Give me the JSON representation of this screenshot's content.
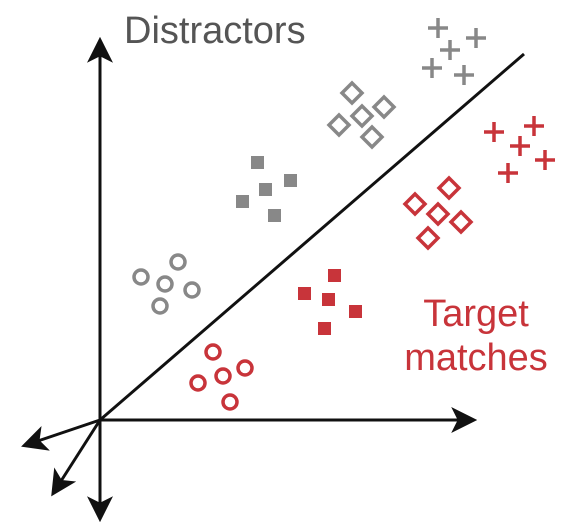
{
  "labels": {
    "distractors": "Distractors",
    "target_line1": "Target",
    "target_line2": "matches"
  },
  "colors": {
    "distractor": "#888888",
    "target": "#c8343a",
    "axis": "#111111"
  },
  "icons": {
    "arrow": "arrowhead-icon",
    "plus": "plus-marker-icon",
    "diamond": "diamond-marker-icon",
    "square": "square-marker-icon",
    "circle": "circle-marker-icon"
  }
}
